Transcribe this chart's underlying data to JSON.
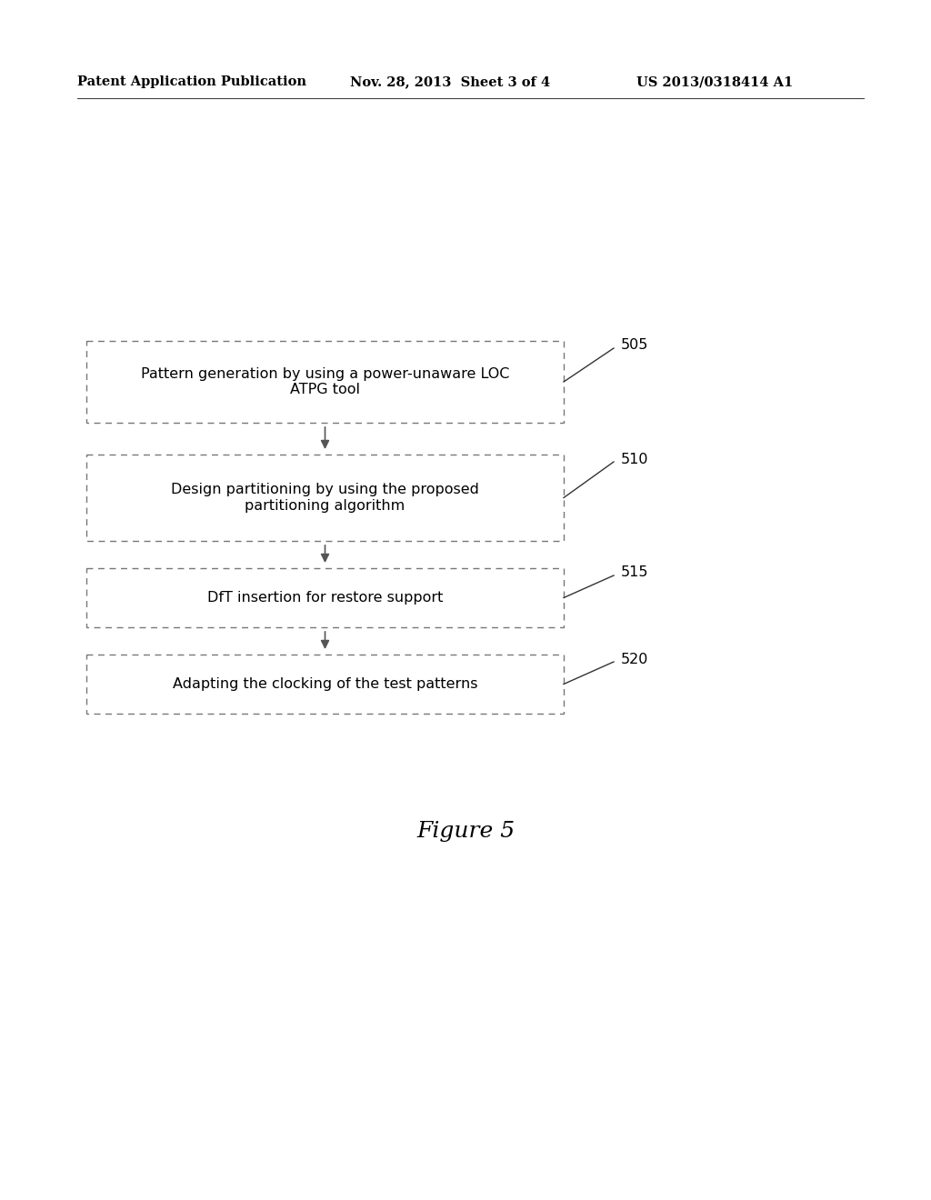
{
  "background_color": "#ffffff",
  "header_left": "Patent Application Publication",
  "header_center": "Nov. 28, 2013  Sheet 3 of 4",
  "header_right": "US 2013/0318414 A1",
  "figure_label": "Figure 5",
  "boxes": [
    {
      "label": "Pattern generation by using a power-unaware LOC\nATPG tool",
      "ref_num": "505"
    },
    {
      "label": "Design partitioning by using the proposed\npartitioning algorithm",
      "ref_num": "510"
    },
    {
      "label": "DfT insertion for restore support",
      "ref_num": "515"
    },
    {
      "label": "Adapting the clocking of the test patterns",
      "ref_num": "520"
    }
  ],
  "text_color": "#000000",
  "box_edge_color": "#777777",
  "box_face_color": "#ffffff",
  "arrow_color": "#555555"
}
